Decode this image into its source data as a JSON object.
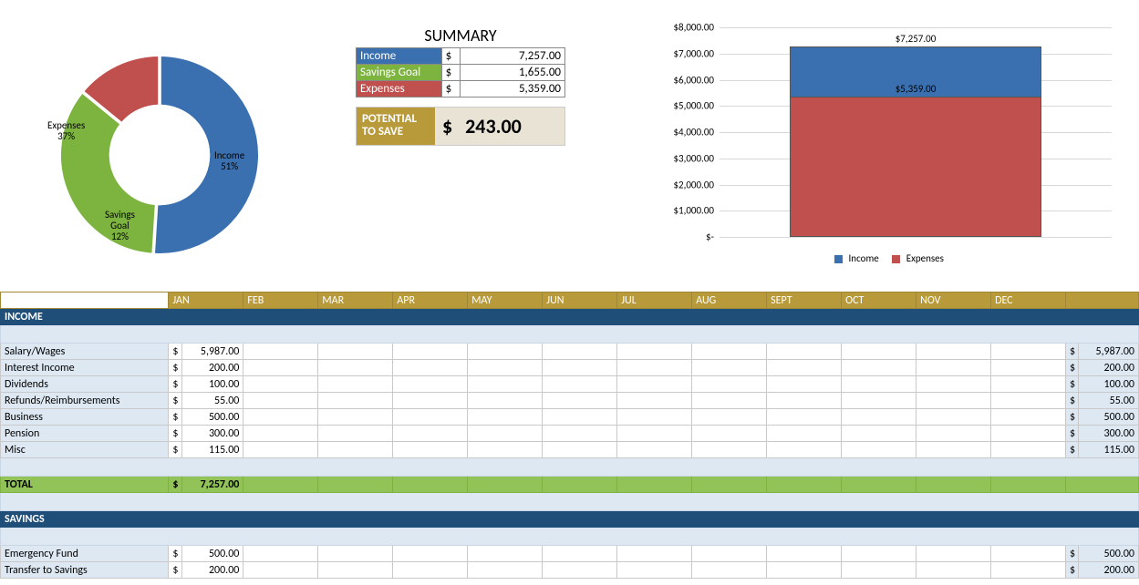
{
  "colors": {
    "income": "#3a6fb0",
    "savings": "#7db440",
    "expenses": "#c0504d",
    "header_gold": "#b89a3b",
    "header_navy": "#1f4e79",
    "row_blue": "#dde8f3",
    "total_green": "#92c359"
  },
  "donut": {
    "type": "donut",
    "slices": [
      {
        "label": "Income",
        "pct_label": "51%",
        "value": 51,
        "color": "#3a6fb0"
      },
      {
        "label": "Savings Goal",
        "pct_label": "12%",
        "value": 12,
        "color": "#7db440"
      },
      {
        "label": "Expenses",
        "pct_label": "37%",
        "value": 37,
        "color": "#c0504d"
      }
    ],
    "label_income": "Income",
    "label_income_pct": "51%",
    "label_savings": "Savings",
    "label_savings2": "Goal",
    "label_savings_pct": "12%",
    "label_expenses": "Expenses",
    "label_expenses_pct": "37%"
  },
  "summary": {
    "title": "SUMMARY",
    "rows": [
      {
        "label": "Income",
        "amount": "7,257.00",
        "color": "#3a6fb0"
      },
      {
        "label": "Savings Goal",
        "amount": "1,655.00",
        "color": "#7db440"
      },
      {
        "label": "Expenses",
        "amount": "5,359.00",
        "color": "#c0504d"
      }
    ],
    "potential_label1": "POTENTIAL",
    "potential_label2": "TO SAVE",
    "potential_currency": "$",
    "potential_amount": "243.00"
  },
  "bar_chart": {
    "type": "stacked-bar",
    "y_max": 8000,
    "y_ticks": [
      "$8,000.00",
      "$7,000.00",
      "$6,000.00",
      "$5,000.00",
      "$4,000.00",
      "$3,000.00",
      "$2,000.00",
      "$1,000.00",
      "$-"
    ],
    "income_value": 7257,
    "income_label": "$7,257.00",
    "expenses_value": 5359,
    "expenses_label": "$5,359.00",
    "legend_income": "Income",
    "legend_expenses": "Expenses",
    "income_color": "#3a6fb0",
    "expenses_color": "#c0504d"
  },
  "months": [
    "JAN",
    "FEB",
    "MAR",
    "APR",
    "MAY",
    "JUN",
    "JUL",
    "AUG",
    "SEPT",
    "OCT",
    "NOV",
    "DEC"
  ],
  "sections": {
    "income": {
      "header": "INCOME",
      "rows": [
        {
          "label": "Salary/Wages",
          "jan": "5,987.00",
          "total": "5,987.00"
        },
        {
          "label": "Interest Income",
          "jan": "200.00",
          "total": "200.00"
        },
        {
          "label": "Dividends",
          "jan": "100.00",
          "total": "100.00"
        },
        {
          "label": "Refunds/Reimbursements",
          "jan": "55.00",
          "total": "55.00"
        },
        {
          "label": "Business",
          "jan": "500.00",
          "total": "500.00"
        },
        {
          "label": "Pension",
          "jan": "300.00",
          "total": "300.00"
        },
        {
          "label": "Misc",
          "jan": "115.00",
          "total": "115.00"
        }
      ],
      "total_label": "TOTAL",
      "total_jan": "7,257.00"
    },
    "savings": {
      "header": "SAVINGS",
      "rows": [
        {
          "label": "Emergency Fund",
          "jan": "500.00",
          "total": "500.00"
        },
        {
          "label": "Transfer to Savings",
          "jan": "200.00",
          "total": "200.00"
        }
      ]
    }
  },
  "currency_symbol": "$"
}
